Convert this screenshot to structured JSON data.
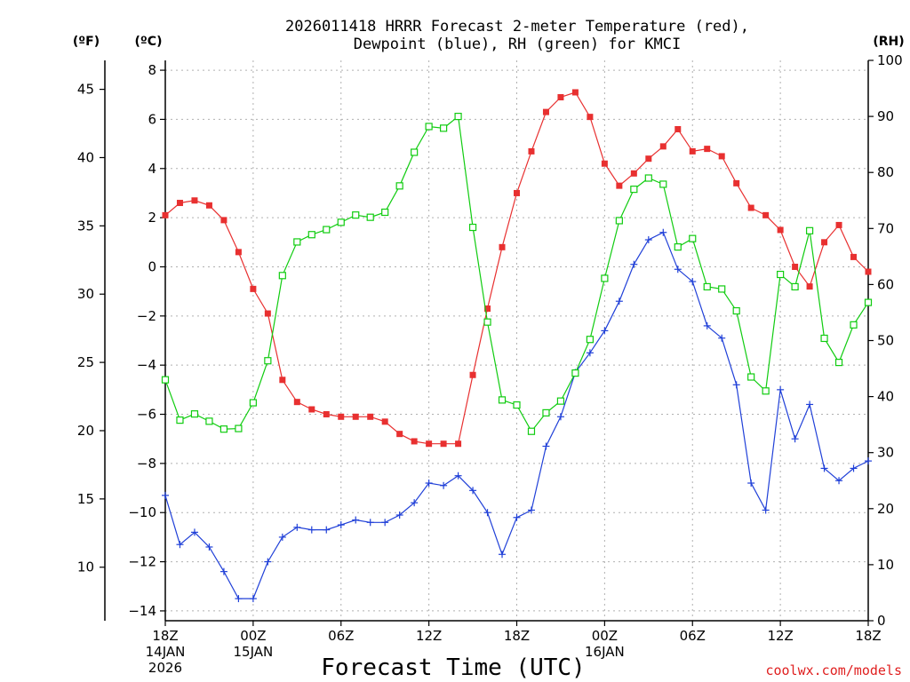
{
  "title": {
    "line1": "2026011418 HRRR Forecast 2-meter Temperature (red),",
    "line2": "Dewpoint (blue), RH (green) for KMCI"
  },
  "units": {
    "f": "(ºF)",
    "c": "(ºC)",
    "rh": "(RH)"
  },
  "credit": "coolwx.com/models",
  "colors": {
    "temp": "#e83030",
    "dewpoint": "#2040d8",
    "rh": "#10cc10",
    "grid": "#b0b0b0"
  },
  "chart_data": {
    "type": "line",
    "xlabel": "Forecast Time (UTC)",
    "x": [
      0,
      1,
      2,
      3,
      4,
      5,
      6,
      7,
      8,
      9,
      10,
      11,
      12,
      13,
      14,
      15,
      16,
      17,
      18,
      19,
      20,
      21,
      22,
      23,
      24,
      25,
      26,
      27,
      28,
      29,
      30,
      31,
      32,
      33,
      34,
      35,
      36,
      37,
      38,
      39,
      40,
      41,
      42,
      43,
      44,
      45,
      46,
      47,
      48
    ],
    "xlim": [
      0,
      48
    ],
    "x_ticks": [
      {
        "x": 0,
        "label": "18Z",
        "date": "14JAN",
        "year": "2026"
      },
      {
        "x": 6,
        "label": "00Z",
        "date": "15JAN"
      },
      {
        "x": 12,
        "label": "06Z"
      },
      {
        "x": 18,
        "label": "12Z"
      },
      {
        "x": 24,
        "label": "18Z"
      },
      {
        "x": 30,
        "label": "00Z",
        "date": "16JAN"
      },
      {
        "x": 36,
        "label": "06Z"
      },
      {
        "x": 42,
        "label": "12Z"
      },
      {
        "x": 48,
        "label": "18Z"
      }
    ],
    "y_celsius": {
      "lim": [
        -14.4,
        8.4
      ],
      "ticks": [
        -14,
        -12,
        -10,
        -8,
        -6,
        -4,
        -2,
        0,
        2,
        4,
        6,
        8
      ]
    },
    "y_fahrenheit": {
      "ticks": [
        10,
        15,
        20,
        25,
        30,
        35,
        40,
        45
      ]
    },
    "y_rh": {
      "lim": [
        0,
        100
      ],
      "ticks": [
        0,
        10,
        20,
        30,
        40,
        50,
        60,
        70,
        80,
        90,
        100
      ]
    },
    "grid": true,
    "series": [
      {
        "name": "Temperature (red)",
        "axis": "celsius",
        "marker": "filled-square",
        "values": [
          2.1,
          2.6,
          2.7,
          2.5,
          1.9,
          0.6,
          -0.9,
          -1.9,
          -4.6,
          -5.5,
          -5.8,
          -6.0,
          -6.1,
          -6.1,
          -6.1,
          -6.3,
          -6.8,
          -7.1,
          -7.2,
          -7.2,
          -7.2,
          -4.4,
          -1.7,
          0.8,
          3.0,
          4.7,
          6.3,
          6.9,
          7.1,
          6.1,
          4.2,
          3.3,
          3.8,
          4.4,
          4.9,
          5.6,
          4.7,
          4.8,
          4.5,
          3.4,
          2.4,
          2.1,
          1.5,
          0.0,
          -0.8,
          1.0,
          1.7,
          0.4,
          -0.2
        ]
      },
      {
        "name": "Dewpoint (blue)",
        "axis": "celsius",
        "marker": "plus",
        "values": [
          -9.3,
          -11.3,
          -10.8,
          -11.4,
          -12.4,
          -13.5,
          -13.5,
          -12.0,
          -11.0,
          -10.6,
          -10.7,
          -10.7,
          -10.5,
          -10.3,
          -10.4,
          -10.4,
          -10.1,
          -9.6,
          -8.8,
          -8.9,
          -8.5,
          -9.1,
          -10.0,
          -11.7,
          -10.2,
          -9.9,
          -7.3,
          -6.1,
          -4.3,
          -3.5,
          -2.6,
          -1.4,
          0.1,
          1.1,
          1.4,
          -0.1,
          -0.6,
          -2.4,
          -2.9,
          -4.8,
          -8.8,
          -9.9,
          -5.0,
          -7.0,
          -5.6,
          -8.2,
          -8.7,
          -8.2,
          -7.9
        ]
      },
      {
        "name": "RH (green)",
        "axis": "rh",
        "marker": "open-square",
        "values": [
          43.0,
          35.8,
          36.9,
          35.6,
          34.2,
          34.3,
          38.9,
          46.4,
          61.6,
          67.6,
          68.9,
          69.8,
          71.1,
          72.4,
          72.0,
          72.9,
          77.6,
          83.6,
          88.2,
          87.9,
          90.0,
          70.2,
          53.3,
          39.4,
          38.5,
          33.8,
          37.1,
          39.2,
          44.2,
          50.2,
          61.1,
          71.4,
          77.0,
          79.0,
          77.9,
          66.7,
          68.2,
          59.6,
          59.2,
          55.3,
          43.5,
          41.0,
          61.8,
          59.6,
          69.6,
          50.4,
          46.1,
          52.8,
          56.8
        ]
      }
    ]
  }
}
